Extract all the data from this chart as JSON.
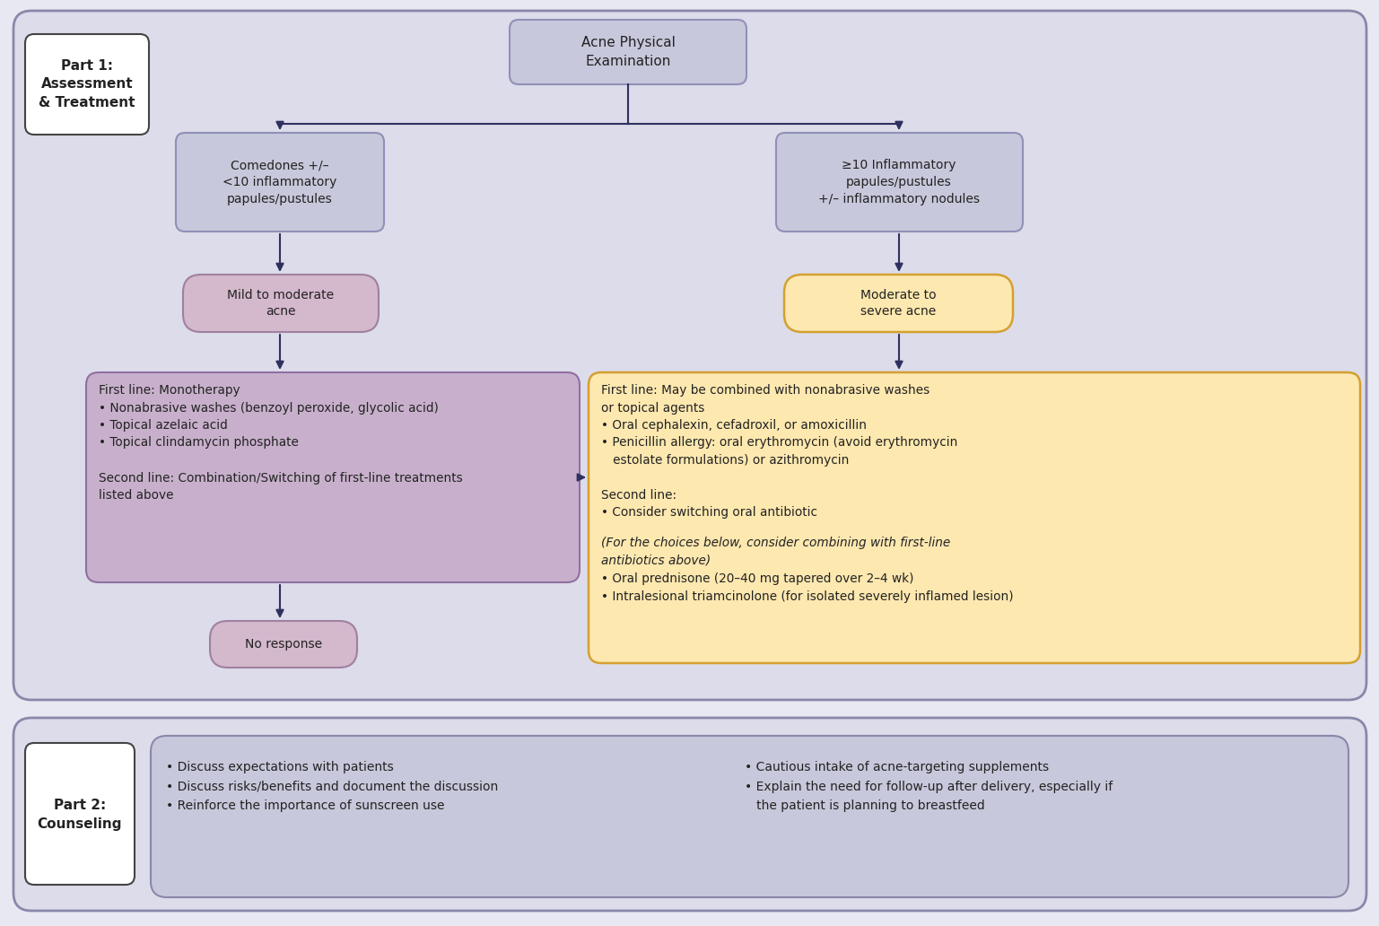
{
  "bg_color": "#e8e8f2",
  "part1_bg_fill": "#dcdcea",
  "part1_bg_edge": "#8888aa",
  "part2_bg_fill": "#dcdcea",
  "part2_bg_edge": "#8888aa",
  "white": "#ffffff",
  "blue_box_fill": "#c8c8dc",
  "blue_box_edge": "#9090b8",
  "pink_box_fill": "#d4b8cc",
  "pink_box_edge": "#a080a0",
  "purple_box_fill": "#c8b0cc",
  "purple_box_edge": "#9070a0",
  "orange_box_fill": "#fde8b0",
  "orange_box_edge": "#d4a030",
  "counseling_inner_fill": "#c8c8dc",
  "counseling_inner_edge": "#8888aa",
  "arrow_color": "#303060",
  "text_color": "#222222",
  "part1_label_text": "Part 1:\nAssessment\n& Treatment",
  "part2_label_text": "Part 2:\nCounseling",
  "title_text": "Acne Physical\nExamination",
  "left_diag_text": "Comedones +/–\n<10 inflammatory\npapules/pustules",
  "right_diag_text": "≥10 Inflammatory\npapules/pustules\n+/– inflammatory nodules",
  "mild_text": "Mild to moderate\nacne",
  "severe_text": "Moderate to\nsevere acne",
  "left_treat_line1": "First line: Monotherapy",
  "left_treat_bullets": "• Nonabrasive washes (benzoyl peroxide, glycolic acid)\n• Topical azelaic acid\n• Topical clindamycin phosphate",
  "left_treat_line2": "\nSecond line: Combination/Switching of first-line treatments\nlisted above",
  "right_treat_text": "First line: May be combined with nonabrasive washes\nor topical agents\n• Oral cephalexin, cefadroxil, or amoxicillin\n• Penicillin allergy: oral erythromycin (avoid erythromycin\n   estolate formulations) or azithromycin\n\nSecond line:\n• Consider switching oral antibiotic",
  "right_treat_italic": "(For the choices below, consider combining with first-line\nantibiotics above)",
  "right_treat_end": "• Oral prednisone (20–40 mg tapered over 2–4 wk)\n• Intralesional triamcinolone (for isolated severely inflamed lesion)",
  "no_response_text": "No response",
  "counsel_left": "• Discuss expectations with patients\n• Discuss risks/benefits and document the discussion\n• Reinforce the importance of sunscreen use",
  "counsel_right": "• Cautious intake of acne-targeting supplements\n• Explain the need for follow-up after delivery, especially if\n   the patient is planning to breastfeed"
}
